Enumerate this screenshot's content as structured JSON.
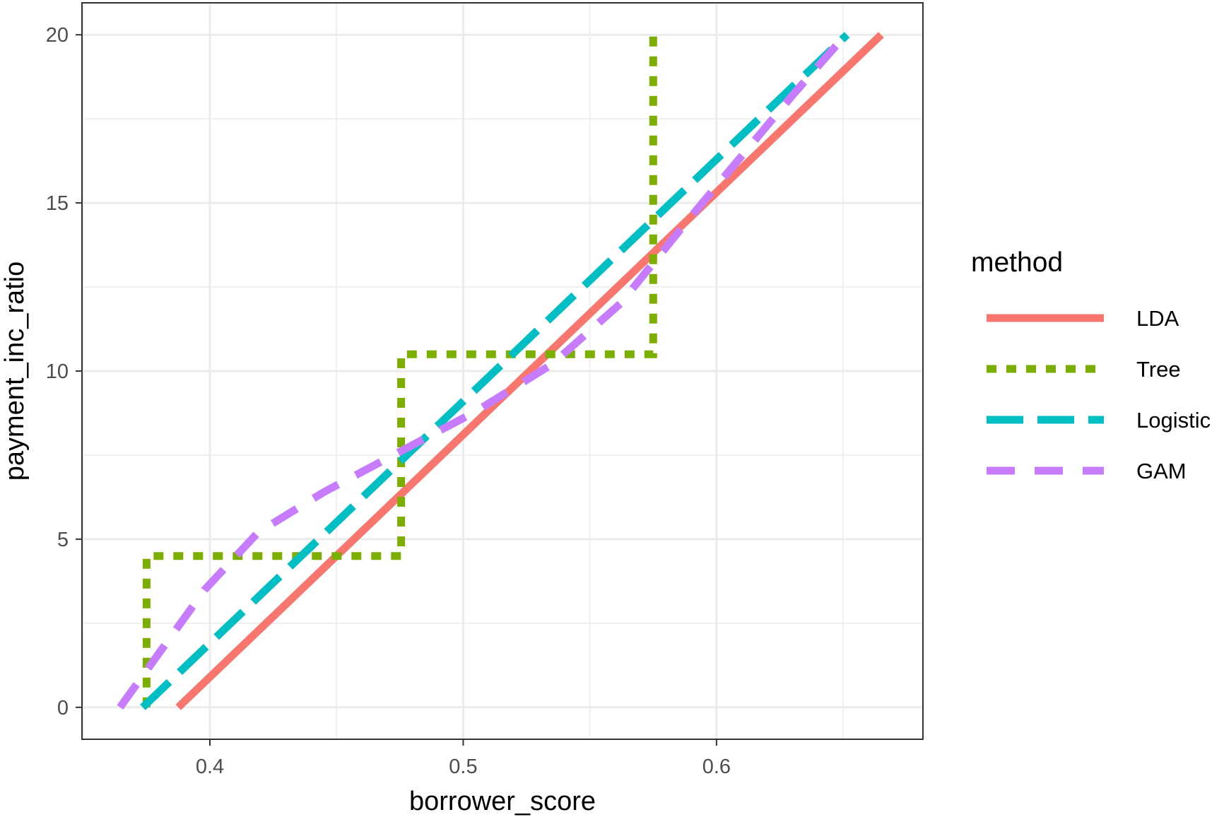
{
  "chart_data": {
    "type": "line",
    "xlabel": "borrower_score",
    "ylabel": "payment_inc_ratio",
    "xlim": [
      0.3495,
      0.6815
    ],
    "ylim": [
      -0.95,
      20.95
    ],
    "x_ticks": [
      0.4,
      0.5,
      0.6
    ],
    "x_tick_labels": [
      "0.4",
      "0.5",
      "0.6"
    ],
    "y_ticks": [
      0,
      5,
      10,
      15,
      20
    ],
    "y_tick_labels": [
      "0",
      "5",
      "10",
      "15",
      "20"
    ],
    "grid": true,
    "legend": {
      "title": "method",
      "position": "right"
    },
    "series": [
      {
        "name": "LDA",
        "color": "#F8766D",
        "dash": "solid",
        "points": [
          [
            0.3875,
            0
          ],
          [
            0.665,
            20
          ]
        ]
      },
      {
        "name": "Tree",
        "color": "#7CAE00",
        "dash": "dotted",
        "points": [
          [
            0.375,
            0
          ],
          [
            0.375,
            4.5
          ],
          [
            0.4755,
            4.5
          ],
          [
            0.4755,
            10.5
          ],
          [
            0.575,
            10.5
          ],
          [
            0.575,
            20
          ]
        ]
      },
      {
        "name": "Logistic",
        "color": "#00BFC4",
        "dash": "longdash",
        "points": [
          [
            0.3735,
            0
          ],
          [
            0.6515,
            20
          ]
        ]
      },
      {
        "name": "GAM",
        "color": "#C77CFF",
        "dash": "dashed",
        "points": [
          [
            0.3645,
            0
          ],
          [
            0.398,
            3.5
          ],
          [
            0.419,
            5.2
          ],
          [
            0.445,
            6.4
          ],
          [
            0.475,
            7.6
          ],
          [
            0.505,
            8.8
          ],
          [
            0.535,
            10.2
          ],
          [
            0.562,
            12.0
          ],
          [
            0.59,
            14.6
          ],
          [
            0.61,
            16.4
          ],
          [
            0.63,
            18.2
          ],
          [
            0.651,
            20
          ]
        ]
      }
    ]
  }
}
